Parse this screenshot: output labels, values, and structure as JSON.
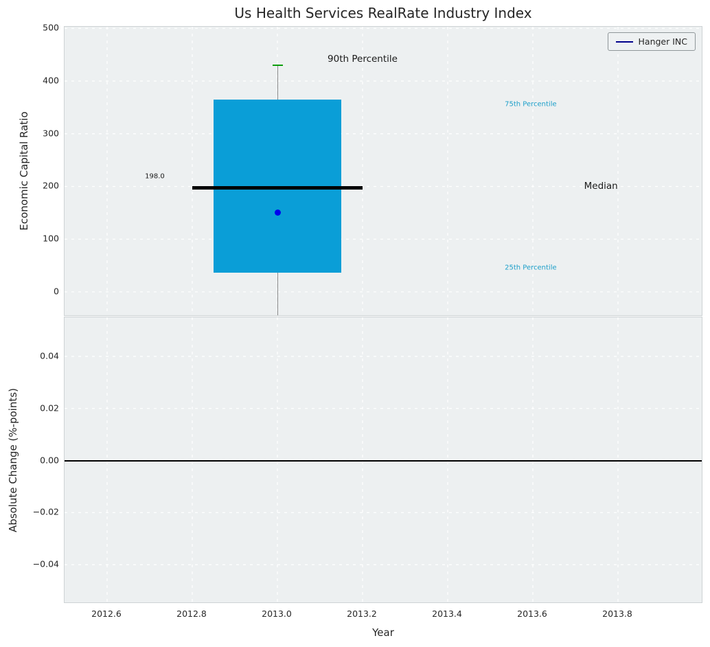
{
  "title": "Us Health Services RealRate Industry Index",
  "legend": {
    "label": "Hanger INC",
    "line_color": "#00008b"
  },
  "colors": {
    "plot_bg": "#edf0f1",
    "grid": "#ffffff",
    "box_fill": "#0a9ed7",
    "percentile_label": "#1b9ec9",
    "text_dark": "#1a1a1a",
    "median_line": "#000000",
    "whisker": "#8a8a8a",
    "cap": "#0b9e0b",
    "dot": "#0000ee",
    "zero_line": "#000000"
  },
  "chart_data": [
    {
      "type": "boxplot",
      "title": "Us Health Services RealRate Industry Index",
      "ylabel": "Economic Capital Ratio",
      "xlim": [
        2012.5,
        2014.0
      ],
      "ylim": [
        -47,
        503
      ],
      "grid": true,
      "legend_position": "upper right",
      "yticks": [
        {
          "v": 0,
          "label": "0"
        },
        {
          "v": 100,
          "label": "100"
        },
        {
          "v": 200,
          "label": "200"
        },
        {
          "v": 300,
          "label": "300"
        },
        {
          "v": 400,
          "label": "400"
        },
        {
          "v": 500,
          "label": "500"
        }
      ],
      "box": {
        "x": 2013.0,
        "box_left": 2012.85,
        "box_right": 2013.15,
        "q25": 36,
        "q75": 365,
        "median": 198.0,
        "median_left": 2012.8,
        "median_right": 2013.2,
        "p90": 430,
        "whisker_low_clipped": true,
        "company_value": 150
      },
      "annotations": [
        {
          "name": "median-value-label",
          "text": "198.0",
          "x": 2012.712,
          "y": 219,
          "color": "text_dark",
          "cls": "ann-sm"
        },
        {
          "name": "annotation-90th-percentile",
          "text": "90th Percentile",
          "x": 2013.2,
          "y": 442,
          "color": "text_dark",
          "cls": "ann-lg"
        },
        {
          "name": "annotation-75th-percentile",
          "text": "75th Percentile",
          "x": 2013.595,
          "y": 356,
          "color": "percentile_label",
          "cls": "ann-sm"
        },
        {
          "name": "annotation-median",
          "text": "Median",
          "x": 2013.76,
          "y": 200,
          "color": "text_dark",
          "cls": "ann-lg"
        },
        {
          "name": "annotation-25th-percentile",
          "text": "25th Percentile",
          "x": 2013.595,
          "y": 45,
          "color": "percentile_label",
          "cls": "ann-sm"
        }
      ]
    },
    {
      "type": "line",
      "ylabel": "Absolute Change (%-points)",
      "xlabel": "Year",
      "xlim": [
        2012.5,
        2014.0
      ],
      "ylim": [
        -0.055,
        0.055
      ],
      "grid": true,
      "zero_line": 0.0,
      "yticks": [
        {
          "v": 0.04,
          "label": "0.04"
        },
        {
          "v": 0.02,
          "label": "0.02"
        },
        {
          "v": 0.0,
          "label": "0.00"
        },
        {
          "v": -0.02,
          "label": "−0.02"
        },
        {
          "v": -0.04,
          "label": "−0.04"
        }
      ],
      "xticks": [
        {
          "v": 2012.6,
          "label": "2012.6"
        },
        {
          "v": 2012.8,
          "label": "2012.8"
        },
        {
          "v": 2013.0,
          "label": "2013.0"
        },
        {
          "v": 2013.2,
          "label": "2013.2"
        },
        {
          "v": 2013.4,
          "label": "2013.4"
        },
        {
          "v": 2013.6,
          "label": "2013.6"
        },
        {
          "v": 2013.8,
          "label": "2013.8"
        }
      ]
    }
  ]
}
